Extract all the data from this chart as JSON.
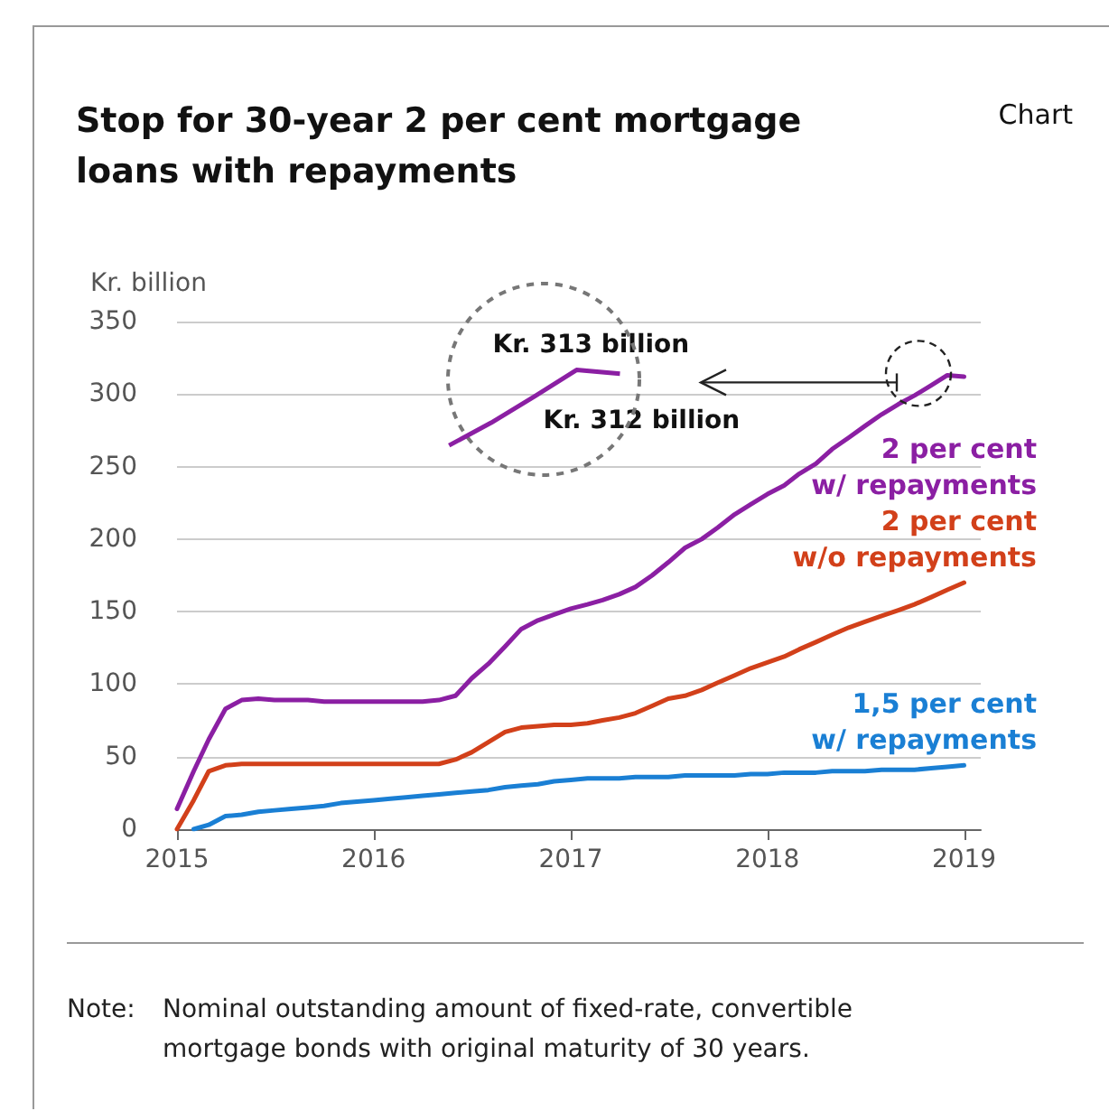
{
  "chart_data": {
    "type": "line",
    "title": "Stop for 30-year 2 per cent mortgage loans with repayments",
    "ylabel": "Kr. billion",
    "annotations": [
      "Chart",
      "Kr. 313 billion",
      "Kr. 312 billion",
      "Note: Nominal outstanding amount of fixed-rate, convertible mortgage bonds with original maturity of 30 years."
    ],
    "x": [
      "2015-01",
      "2015-02",
      "2015-03",
      "2015-04",
      "2015-05",
      "2015-06",
      "2015-07",
      "2015-08",
      "2015-09",
      "2015-10",
      "2015-11",
      "2015-12",
      "2016-01",
      "2016-02",
      "2016-03",
      "2016-04",
      "2016-05",
      "2016-06",
      "2016-07",
      "2016-08",
      "2016-09",
      "2016-10",
      "2016-11",
      "2016-12",
      "2017-01",
      "2017-02",
      "2017-03",
      "2017-04",
      "2017-05",
      "2017-06",
      "2017-07",
      "2017-08",
      "2017-09",
      "2017-10",
      "2017-11",
      "2017-12",
      "2018-01",
      "2018-02",
      "2018-03",
      "2018-04",
      "2018-05",
      "2018-06",
      "2018-07",
      "2018-08",
      "2018-09",
      "2018-10",
      "2018-11",
      "2018-12",
      "2019-01"
    ],
    "series": [
      {
        "name": "2 per cent w/ repayments",
        "color": "#8b1fa3",
        "values": [
          14,
          40,
          62,
          83,
          89,
          90,
          89,
          89,
          89,
          88,
          88,
          88,
          88,
          88,
          88,
          88,
          89,
          92,
          104,
          114,
          126,
          138,
          144,
          148,
          152,
          155,
          158,
          162,
          167,
          175,
          184,
          194,
          200,
          208,
          217,
          224,
          231,
          237,
          245,
          252,
          262,
          270,
          278,
          286,
          293,
          299,
          306,
          313,
          312
        ]
      },
      {
        "name": "2 per cent w/o repayments",
        "color": "#d2401a",
        "values": [
          0,
          20,
          40,
          44,
          45,
          45,
          45,
          45,
          45,
          45,
          45,
          45,
          45,
          45,
          45,
          45,
          45,
          48,
          53,
          60,
          67,
          70,
          71,
          72,
          72,
          73,
          75,
          77,
          80,
          85,
          90,
          92,
          96,
          101,
          106,
          111,
          115,
          119,
          124,
          129,
          134,
          139,
          143,
          147,
          151,
          155,
          160,
          165,
          170
        ]
      },
      {
        "name": "1,5 per cent w/ repayments",
        "color": "#1a7fd4",
        "values": [
          null,
          0,
          3,
          9,
          10,
          12,
          13,
          14,
          15,
          16,
          18,
          19,
          20,
          21,
          22,
          23,
          24,
          25,
          26,
          27,
          29,
          30,
          31,
          33,
          34,
          35,
          35,
          35,
          36,
          36,
          36,
          37,
          37,
          37,
          37,
          38,
          38,
          39,
          39,
          39,
          40,
          40,
          40,
          41,
          41,
          41,
          42,
          43,
          44
        ]
      }
    ],
    "xlim": [
      "2015-01",
      "2019-02"
    ],
    "xticks": [
      "2015",
      "2016",
      "2017",
      "2018",
      "2019"
    ],
    "ylim": [
      0,
      350
    ],
    "yticks": [
      0,
      50,
      100,
      150,
      200,
      250,
      300,
      350
    ],
    "grid": "y",
    "legend": false,
    "marker": "none",
    "line_style": "solid"
  }
}
